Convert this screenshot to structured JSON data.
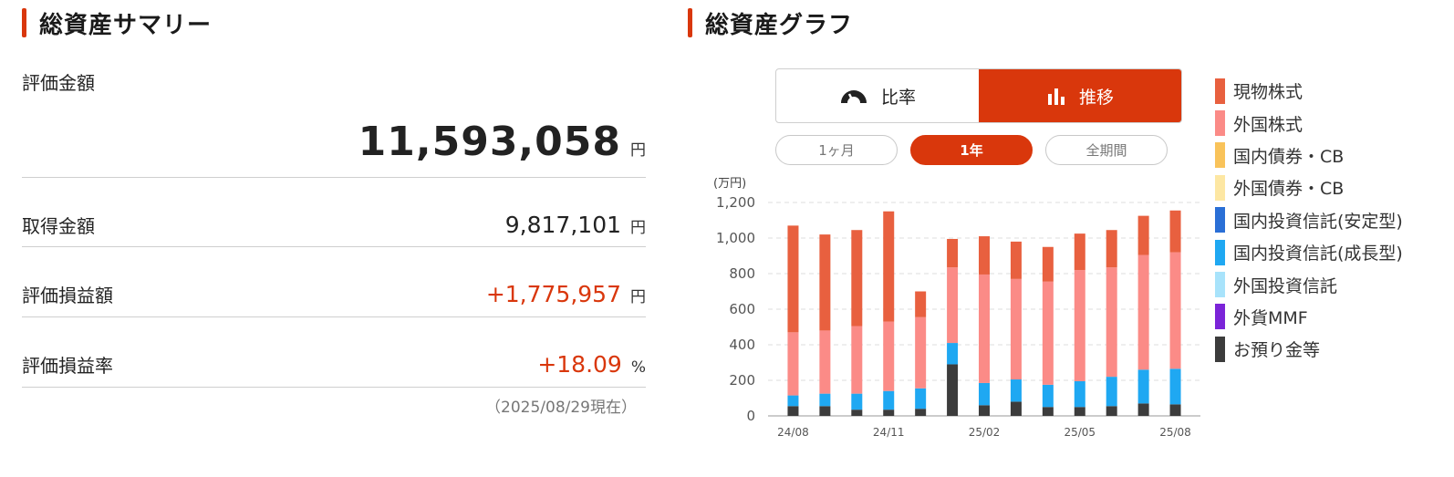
{
  "summary": {
    "title": "総資産サマリー",
    "rows": [
      {
        "label": "評価金額",
        "value": "11,593,058",
        "unit": "円"
      },
      {
        "label": "取得金額",
        "value": "9,817,101",
        "unit": "円"
      },
      {
        "label": "評価損益額",
        "value": "+1,775,957",
        "unit": "円"
      },
      {
        "label": "評価損益率",
        "value": "+18.09",
        "unit": "%"
      }
    ],
    "as_of": "（2025/08/29現在）"
  },
  "graph": {
    "title": "総資産グラフ",
    "toggle": {
      "ratio_label": "比率",
      "trend_label": "推移",
      "selected": "推移"
    },
    "periods": [
      {
        "label": "1ヶ月",
        "selected": false
      },
      {
        "label": "1年",
        "selected": true
      },
      {
        "label": "全期間",
        "selected": false
      }
    ],
    "legend": [
      {
        "label": "現物株式",
        "color": "#e8603f"
      },
      {
        "label": "外国株式",
        "color": "#fb8b87"
      },
      {
        "label": "国内債券・CB",
        "color": "#f9c35a"
      },
      {
        "label": "外国債券・CB",
        "color": "#fde7a3"
      },
      {
        "label": "国内投資信託(安定型)",
        "color": "#2a6fd6"
      },
      {
        "label": "国内投資信託(成長型)",
        "color": "#1fa8f2"
      },
      {
        "label": "外国投資信託",
        "color": "#a8e3fb"
      },
      {
        "label": "外貨MMF",
        "color": "#7b24d8"
      },
      {
        "label": "お預り金等",
        "color": "#3c3c3c"
      }
    ]
  },
  "chart_data": {
    "type": "bar",
    "stacked": true,
    "unit_label": "(万円)",
    "ylim": [
      0,
      1200
    ],
    "yticks": [
      "1,200",
      "1,000",
      "800",
      "600",
      "400",
      "200",
      "0"
    ],
    "ytick_values": [
      1200,
      1000,
      800,
      600,
      400,
      200,
      0
    ],
    "xtick_labels": [
      "24/08",
      "24/11",
      "25/02",
      "25/05",
      "25/08"
    ],
    "xtick_indices": [
      0,
      3,
      6,
      9,
      12
    ],
    "grid": true,
    "series": [
      {
        "name": "お預り金等",
        "color": "#3c3c3c",
        "values": [
          55,
          55,
          35,
          35,
          40,
          290,
          60,
          80,
          50,
          50,
          55,
          70,
          65
        ]
      },
      {
        "name": "国内投資信託(成長型)",
        "color": "#1fa8f2",
        "values": [
          60,
          70,
          90,
          105,
          115,
          120,
          125,
          125,
          125,
          145,
          165,
          190,
          200
        ]
      },
      {
        "name": "外国株式",
        "color": "#fb8b87",
        "values": [
          355,
          355,
          380,
          390,
          400,
          425,
          610,
          565,
          580,
          625,
          615,
          645,
          655
        ]
      },
      {
        "name": "現物株式",
        "color": "#e8603f",
        "values": [
          600,
          540,
          540,
          620,
          145,
          160,
          215,
          210,
          195,
          205,
          210,
          220,
          235
        ]
      }
    ]
  }
}
